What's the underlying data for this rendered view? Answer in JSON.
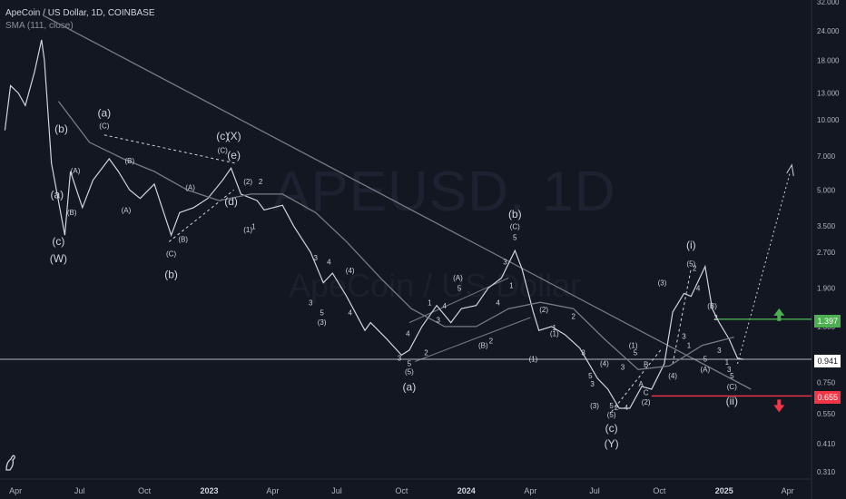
{
  "legend": {
    "title": "ApeCoin / US Dollar, 1D, COINBASE",
    "indicator": "SMA (111, close)"
  },
  "watermark": {
    "symbol": "APEUSD, 1D",
    "name": "ApeCoin / US Dollar"
  },
  "colors": {
    "background": "#131722",
    "price": "#d1d4dc",
    "sma": "#787b86",
    "trendline": "#787b86",
    "target_line": "#4caf50",
    "stop_line": "#f23645",
    "current_price_line": "#b2b5be"
  },
  "price_tags": {
    "target": "1.397",
    "current": "0.941",
    "stop": "0.655"
  },
  "chart_data": {
    "type": "line",
    "title": "ApeCoin / US Dollar, 1D, COINBASE",
    "y_scale": "log",
    "ylim": [
      0.31,
      32.0
    ],
    "y_ticks": [
      "32.000",
      "24.000",
      "18.000",
      "13.000",
      "10.000",
      "7.000",
      "5.000",
      "3.500",
      "2.700",
      "1.900",
      "1.300",
      "0.941",
      "0.750",
      "0.655",
      "0.550",
      "0.410",
      "0.310"
    ],
    "x_ticks": [
      "Apr",
      "Jul",
      "Oct",
      "2023",
      "Apr",
      "Jul",
      "Oct",
      "2024",
      "Apr",
      "Jul",
      "Oct",
      "2025",
      "Apr"
    ],
    "series": [
      {
        "name": "ApeCoin / US Dollar",
        "x": [
          "2022-03-17",
          "2022-03-25",
          "2022-04-05",
          "2022-04-15",
          "2022-04-28",
          "2022-05-08",
          "2022-05-12",
          "2022-05-22",
          "2022-06-10",
          "2022-06-18",
          "2022-07-05",
          "2022-07-20",
          "2022-08-12",
          "2022-08-25",
          "2022-09-10",
          "2022-09-25",
          "2022-10-15",
          "2022-11-08",
          "2022-11-20",
          "2022-12-10",
          "2022-12-30",
          "2023-01-20",
          "2023-02-01",
          "2023-02-15",
          "2023-03-10",
          "2023-03-20",
          "2023-04-15",
          "2023-05-01",
          "2023-05-25",
          "2023-06-12",
          "2023-06-25",
          "2023-07-15",
          "2023-08-10",
          "2023-08-18",
          "2023-09-10",
          "2023-10-01",
          "2023-10-12",
          "2023-10-30",
          "2023-11-20",
          "2023-12-10",
          "2023-12-25",
          "2024-01-15",
          "2024-02-01",
          "2024-02-20",
          "2024-03-10",
          "2024-03-20",
          "2024-04-05",
          "2024-04-13",
          "2024-05-01",
          "2024-05-20",
          "2024-06-10",
          "2024-06-25",
          "2024-07-05",
          "2024-07-20",
          "2024-08-05",
          "2024-08-20",
          "2024-09-06",
          "2024-09-20",
          "2024-10-08",
          "2024-10-20",
          "2024-11-05",
          "2024-11-15",
          "2024-12-05",
          "2024-12-15",
          "2024-12-25",
          "2025-01-08",
          "2025-01-20",
          "2025-01-28"
        ],
        "y": [
          9.0,
          14.0,
          13.0,
          11.5,
          16.0,
          22.0,
          18.0,
          6.5,
          3.2,
          6.0,
          4.2,
          5.5,
          6.8,
          6.0,
          5.0,
          4.6,
          5.3,
          3.2,
          4.0,
          4.2,
          4.6,
          5.5,
          6.2,
          4.8,
          4.5,
          4.1,
          4.3,
          3.5,
          2.7,
          2.0,
          2.2,
          1.75,
          1.25,
          1.35,
          1.15,
          0.98,
          1.03,
          1.3,
          1.6,
          1.35,
          1.55,
          1.6,
          1.9,
          2.1,
          2.75,
          2.3,
          1.5,
          1.25,
          1.3,
          1.2,
          1.05,
          0.88,
          0.78,
          0.7,
          0.58,
          0.58,
          0.72,
          0.7,
          0.9,
          1.5,
          1.8,
          1.75,
          2.35,
          1.55,
          1.35,
          1.15,
          0.95,
          0.94
        ]
      },
      {
        "name": "SMA (111, close)",
        "x": [
          "2022-06-01",
          "2022-07-15",
          "2022-09-01",
          "2022-10-15",
          "2022-12-01",
          "2023-01-15",
          "2023-03-01",
          "2023-04-15",
          "2023-06-01",
          "2023-07-15",
          "2023-09-01",
          "2023-10-15",
          "2023-12-01",
          "2024-01-15",
          "2024-03-01",
          "2024-04-15",
          "2024-06-01",
          "2024-07-15",
          "2024-09-01",
          "2024-10-15",
          "2024-12-01",
          "2025-01-15"
        ],
        "y": [
          12.0,
          8.0,
          6.8,
          6.0,
          5.0,
          4.5,
          4.8,
          4.8,
          4.0,
          3.0,
          2.1,
          1.55,
          1.3,
          1.3,
          1.55,
          1.65,
          1.55,
          1.15,
          0.85,
          0.88,
          1.08,
          1.17
        ]
      }
    ],
    "annotations": [
      {
        "date": "2022-05-30",
        "price": 4.6,
        "text": "(a)",
        "size": "big"
      },
      {
        "date": "2022-06-05",
        "price": 8.8,
        "text": "(b)",
        "size": "big"
      },
      {
        "date": "2022-06-01",
        "price": 2.9,
        "text": "(c)",
        "size": "big"
      },
      {
        "date": "2022-06-01",
        "price": 2.45,
        "text": "(W)",
        "size": "big"
      },
      {
        "date": "2022-06-25",
        "price": 5.9,
        "text": "(A)",
        "size": "small"
      },
      {
        "date": "2022-06-20",
        "price": 3.9,
        "text": "(B)",
        "size": "small"
      },
      {
        "date": "2022-08-05",
        "price": 10.3,
        "text": "(a)",
        "size": "big"
      },
      {
        "date": "2022-08-05",
        "price": 9.2,
        "text": "(C)",
        "size": "small"
      },
      {
        "date": "2022-09-10",
        "price": 6.5,
        "text": "(B)",
        "size": "small"
      },
      {
        "date": "2022-09-05",
        "price": 4.0,
        "text": "(A)",
        "size": "small"
      },
      {
        "date": "2022-11-08",
        "price": 2.6,
        "text": "(C)",
        "size": "small"
      },
      {
        "date": "2022-11-08",
        "price": 2.1,
        "text": "(b)",
        "size": "big"
      },
      {
        "date": "2022-11-25",
        "price": 3.0,
        "text": "(B)",
        "size": "small"
      },
      {
        "date": "2022-12-05",
        "price": 5.0,
        "text": "(A)",
        "size": "small"
      },
      {
        "date": "2023-01-20",
        "price": 8.2,
        "text": "(c)",
        "size": "big"
      },
      {
        "date": "2023-01-20",
        "price": 7.2,
        "text": "(C)",
        "size": "small"
      },
      {
        "date": "2023-02-05",
        "price": 8.2,
        "text": "(X)",
        "size": "big"
      },
      {
        "date": "2023-02-05",
        "price": 6.8,
        "text": "(e)",
        "size": "big"
      },
      {
        "date": "2023-02-01",
        "price": 4.3,
        "text": "(d)",
        "size": "big"
      },
      {
        "date": "2023-02-25",
        "price": 5.3,
        "text": "(2)",
        "size": "small"
      },
      {
        "date": "2023-02-25",
        "price": 3.3,
        "text": "(1)",
        "size": "small"
      },
      {
        "date": "2023-03-05",
        "price": 3.4,
        "text": "1",
        "size": "small"
      },
      {
        "date": "2023-03-15",
        "price": 5.3,
        "text": "2",
        "size": "small"
      },
      {
        "date": "2023-06-01",
        "price": 2.5,
        "text": "3",
        "size": "small"
      },
      {
        "date": "2023-06-20",
        "price": 2.4,
        "text": "4",
        "size": "small"
      },
      {
        "date": "2023-05-25",
        "price": 1.6,
        "text": "3",
        "size": "small"
      },
      {
        "date": "2023-06-10",
        "price": 1.45,
        "text": "5",
        "size": "small"
      },
      {
        "date": "2023-06-10",
        "price": 1.32,
        "text": "(3)",
        "size": "small"
      },
      {
        "date": "2023-07-20",
        "price": 2.2,
        "text": "(4)",
        "size": "small"
      },
      {
        "date": "2023-07-20",
        "price": 1.45,
        "text": "4",
        "size": "small"
      },
      {
        "date": "2023-09-28",
        "price": 0.93,
        "text": "3",
        "size": "small"
      },
      {
        "date": "2023-10-10",
        "price": 1.18,
        "text": "4",
        "size": "small"
      },
      {
        "date": "2023-10-12",
        "price": 0.88,
        "text": "5",
        "size": "small"
      },
      {
        "date": "2023-10-12",
        "price": 0.81,
        "text": "(5)",
        "size": "small"
      },
      {
        "date": "2023-10-12",
        "price": 0.69,
        "text": "(a)",
        "size": "big"
      },
      {
        "date": "2023-11-05",
        "price": 0.98,
        "text": "2",
        "size": "small"
      },
      {
        "date": "2023-11-10",
        "price": 1.6,
        "text": "1",
        "size": "small"
      },
      {
        "date": "2023-11-22",
        "price": 1.35,
        "text": "3",
        "size": "small"
      },
      {
        "date": "2023-12-01",
        "price": 1.55,
        "text": "4",
        "size": "small"
      },
      {
        "date": "2023-12-20",
        "price": 2.05,
        "text": "(A)",
        "size": "small"
      },
      {
        "date": "2023-12-22",
        "price": 1.85,
        "text": "5",
        "size": "small"
      },
      {
        "date": "2024-01-25",
        "price": 1.05,
        "text": "(B)",
        "size": "small"
      },
      {
        "date": "2024-02-05",
        "price": 1.1,
        "text": "2",
        "size": "small"
      },
      {
        "date": "2024-02-15",
        "price": 1.6,
        "text": "4",
        "size": "small"
      },
      {
        "date": "2024-02-25",
        "price": 2.4,
        "text": "3",
        "size": "small"
      },
      {
        "date": "2024-03-10",
        "price": 3.8,
        "text": "(b)",
        "size": "big"
      },
      {
        "date": "2024-03-10",
        "price": 3.4,
        "text": "(C)",
        "size": "small"
      },
      {
        "date": "2024-03-10",
        "price": 3.05,
        "text": "5",
        "size": "small"
      },
      {
        "date": "2024-03-05",
        "price": 1.9,
        "text": "1",
        "size": "small"
      },
      {
        "date": "2024-04-20",
        "price": 1.5,
        "text": "(2)",
        "size": "small"
      },
      {
        "date": "2024-04-05",
        "price": 0.92,
        "text": "(1)",
        "size": "small"
      },
      {
        "date": "2024-05-05",
        "price": 1.25,
        "text": "1",
        "size": "small"
      },
      {
        "date": "2024-05-05",
        "price": 1.18,
        "text": "(1)",
        "size": "small"
      },
      {
        "date": "2024-06-01",
        "price": 1.4,
        "text": "2",
        "size": "small"
      },
      {
        "date": "2024-06-15",
        "price": 0.98,
        "text": "3",
        "size": "small"
      },
      {
        "date": "2024-06-25",
        "price": 0.78,
        "text": "5",
        "size": "small"
      },
      {
        "date": "2024-06-28",
        "price": 0.72,
        "text": "3",
        "size": "small"
      },
      {
        "date": "2024-07-15",
        "price": 0.88,
        "text": "(4)",
        "size": "small"
      },
      {
        "date": "2024-07-01",
        "price": 0.58,
        "text": "(3)",
        "size": "small"
      },
      {
        "date": "2024-07-25",
        "price": 0.58,
        "text": "5",
        "size": "small"
      },
      {
        "date": "2024-07-25",
        "price": 0.53,
        "text": "(5)",
        "size": "small"
      },
      {
        "date": "2024-07-25",
        "price": 0.46,
        "text": "(c)",
        "size": "big"
      },
      {
        "date": "2024-07-25",
        "price": 0.395,
        "text": "(Y)",
        "size": "big"
      },
      {
        "date": "2024-08-01",
        "price": 0.57,
        "text": "2",
        "size": "small"
      },
      {
        "date": "2024-08-10",
        "price": 0.85,
        "text": "3",
        "size": "small"
      },
      {
        "date": "2024-08-15",
        "price": 0.57,
        "text": "4",
        "size": "small"
      },
      {
        "date": "2024-08-25",
        "price": 1.05,
        "text": "(1)",
        "size": "small"
      },
      {
        "date": "2024-08-28",
        "price": 0.98,
        "text": "5",
        "size": "small"
      },
      {
        "date": "2024-09-12",
        "price": 0.87,
        "text": "B",
        "size": "small"
      },
      {
        "date": "2024-09-05",
        "price": 0.72,
        "text": "A",
        "size": "small"
      },
      {
        "date": "2024-09-12",
        "price": 0.66,
        "text": "C",
        "size": "small"
      },
      {
        "date": "2024-09-12",
        "price": 0.6,
        "text": "(2)",
        "size": "small"
      },
      {
        "date": "2024-10-05",
        "price": 1.95,
        "text": "(3)",
        "size": "small"
      },
      {
        "date": "2024-10-20",
        "price": 0.78,
        "text": "(4)",
        "size": "small"
      },
      {
        "date": "2024-11-15",
        "price": 2.8,
        "text": "(i)",
        "size": "big"
      },
      {
        "date": "2024-11-15",
        "price": 2.35,
        "text": "(5)",
        "size": "small"
      },
      {
        "date": "2024-11-20",
        "price": 2.25,
        "text": "2",
        "size": "small"
      },
      {
        "date": "2024-11-25",
        "price": 1.85,
        "text": "4",
        "size": "small"
      },
      {
        "date": "2024-11-05",
        "price": 1.15,
        "text": "3",
        "size": "small"
      },
      {
        "date": "2024-11-12",
        "price": 1.05,
        "text": "1",
        "size": "small"
      },
      {
        "date": "2024-12-05",
        "price": 0.92,
        "text": "5",
        "size": "small"
      },
      {
        "date": "2024-12-05",
        "price": 0.83,
        "text": "(A)",
        "size": "small"
      },
      {
        "date": "2024-12-15",
        "price": 1.55,
        "text": "(B)",
        "size": "small"
      },
      {
        "date": "2024-12-20",
        "price": 1.38,
        "text": "2",
        "size": "small"
      },
      {
        "date": "2024-12-25",
        "price": 1.0,
        "text": "3",
        "size": "small"
      },
      {
        "date": "2025-01-05",
        "price": 0.89,
        "text": "1",
        "size": "small"
      },
      {
        "date": "2025-01-08",
        "price": 0.83,
        "text": "3",
        "size": "small"
      },
      {
        "date": "2025-01-12",
        "price": 0.78,
        "text": "5",
        "size": "small"
      },
      {
        "date": "2025-01-12",
        "price": 0.7,
        "text": "(C)",
        "size": "small"
      },
      {
        "date": "2025-01-12",
        "price": 0.6,
        "text": "(ii)",
        "size": "big"
      }
    ]
  }
}
